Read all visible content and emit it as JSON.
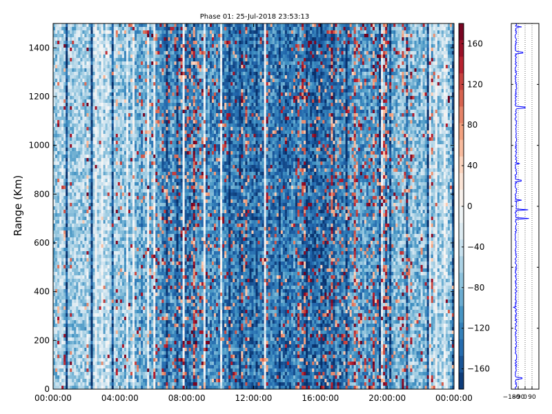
{
  "chart_data": [
    {
      "type": "heatmap",
      "title": "Phase 01: 25-Jul-2018 23:53:13",
      "xlabel": "",
      "ylabel": "Range (Km)",
      "x_ticks": [
        "00:00:00",
        "04:00:00",
        "08:00:00",
        "12:00:00",
        "16:00:00",
        "20:00:00",
        "00:00:00"
      ],
      "x_range_hours": [
        0,
        24
      ],
      "y_ticks": [
        0,
        200,
        400,
        600,
        800,
        1000,
        1200,
        1400
      ],
      "ylim": [
        0,
        1500
      ],
      "colorbar": {
        "ticks": [
          -160,
          -120,
          -80,
          -40,
          0,
          40,
          80,
          120,
          160
        ],
        "range": [
          -180,
          180
        ],
        "colormap": "RdBu_r",
        "colors": [
          "#08306b",
          "#2166ac",
          "#4393c3",
          "#92c5de",
          "#d1e5f0",
          "#f7f7f7",
          "#fddbc7",
          "#f4a582",
          "#d6604d",
          "#b2182b",
          "#67001f"
        ]
      },
      "column_profile_hours": [
        0,
        2,
        3,
        4,
        5.5,
        6.5,
        7.5,
        8.5,
        9.5,
        10.5,
        12,
        13.5,
        15,
        15.8,
        16.5,
        17.5,
        18.5,
        19.5,
        20.5,
        22,
        24
      ],
      "column_profile_mean_phase": [
        -55,
        -60,
        -45,
        -65,
        -95,
        -110,
        -120,
        -120,
        -115,
        -130,
        -135,
        -130,
        -125,
        -140,
        -135,
        -115,
        -105,
        -95,
        -85,
        -70,
        -60
      ],
      "column_profile_red_fraction": [
        0.01,
        0.02,
        0.02,
        0.03,
        0.08,
        0.14,
        0.15,
        0.18,
        0.12,
        0.08,
        0.05,
        0.06,
        0.08,
        0.12,
        0.16,
        0.16,
        0.14,
        0.12,
        0.08,
        0.04,
        0.02
      ],
      "grid": false
    },
    {
      "type": "line",
      "title": "",
      "xlabel": "",
      "ylabel": "",
      "x_ticks": [
        "−180",
        "−90",
        "0",
        "90"
      ],
      "xlim": [
        -180,
        180
      ],
      "ylim": [
        0,
        1500
      ],
      "series_color": "#0000ff",
      "profile_center": -120,
      "spikes": [
        {
          "range_km": 1485,
          "value": -45
        },
        {
          "range_km": 1380,
          "value": -30
        },
        {
          "range_km": 1155,
          "value": 0
        },
        {
          "range_km": 925,
          "value": -70
        },
        {
          "range_km": 855,
          "value": -50
        },
        {
          "range_km": 775,
          "value": -45
        },
        {
          "range_km": 735,
          "value": 40
        },
        {
          "range_km": 700,
          "value": 50
        },
        {
          "range_km": 335,
          "value": -150
        },
        {
          "range_km": 45,
          "value": -40
        }
      ],
      "grid": "dotted vertical"
    }
  ]
}
